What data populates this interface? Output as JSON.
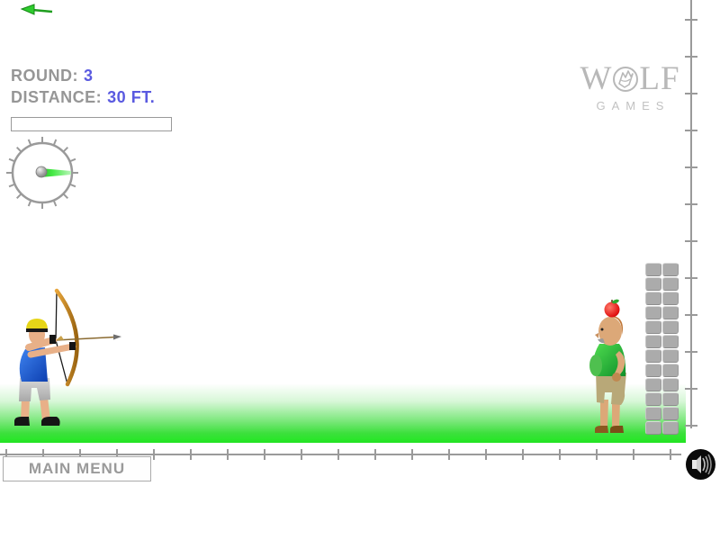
{
  "hud": {
    "round_label": "ROUND:",
    "round_value": "3",
    "distance_label": "DISTANCE:",
    "distance_value": "30 FT.",
    "power_bar_fill_percent": 0
  },
  "logo": {
    "word_start": "W",
    "word_end": "LF",
    "subtitle": "GAMES"
  },
  "buttons": {
    "main_menu_label": "MAIN MENU"
  },
  "icons": {
    "sound": "speaker-icon",
    "gauge_pointer": "green-aim-pointer",
    "cursor": "green-cursor-arrow",
    "logo_center": "wolf-head-icon"
  },
  "scene": {
    "archer": "archer-with-bow",
    "target_person": "man-with-apple-on-head",
    "block_column": {
      "rows": 12,
      "cols": 2
    }
  },
  "rulers": {
    "vertical_tick_count": 12,
    "horizontal_tick_count": 19
  },
  "colors": {
    "accent_blue": "#5a5ae0",
    "hud_gray": "#969696",
    "ground_green": "#2be52b",
    "pointer_green": "#3ddd3d",
    "logo_gray": "#b8b8b8",
    "block_gray": "#ababab"
  }
}
